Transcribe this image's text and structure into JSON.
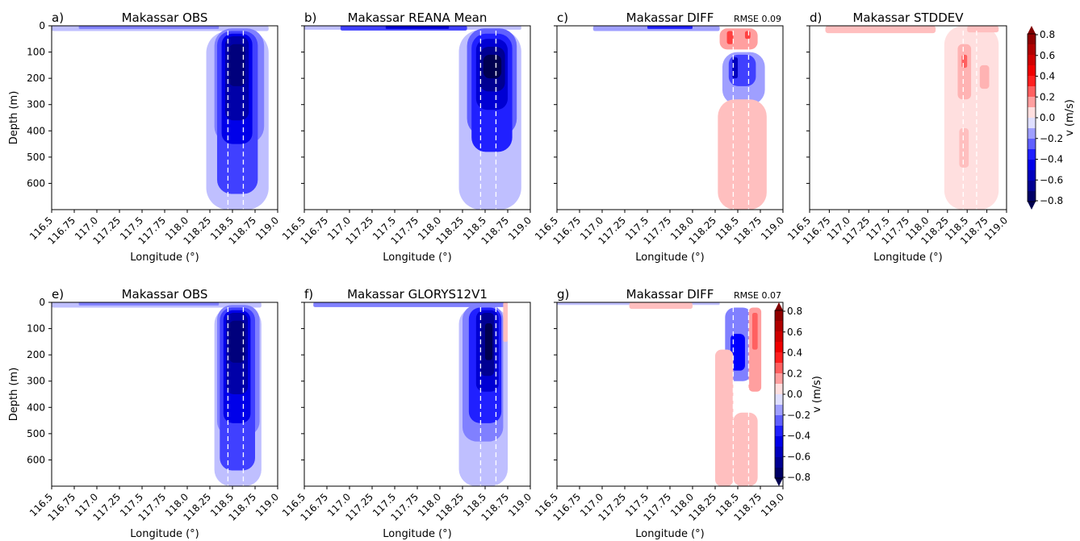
{
  "chart_data": [
    {
      "type": "heatmap",
      "label": "a)",
      "title": "Makassar OBS",
      "annotation": "",
      "xlabel": "Longitude (°)",
      "ylabel": "Depth (m)",
      "xlim": [
        116.5,
        119.0
      ],
      "ylim": [
        700,
        0
      ],
      "xticks": [
        "116.5",
        "116.75",
        "117.0",
        "117.25",
        "117.5",
        "117.75",
        "118.0",
        "118.25",
        "118.5",
        "118.75",
        "119.0"
      ],
      "yticks": [
        "0",
        "100",
        "200",
        "300",
        "400",
        "500",
        "600"
      ],
      "guide_lines_lon": [
        118.45,
        118.62
      ],
      "shading": [
        {
          "lon": [
            116.5,
            118.9
          ],
          "depth": [
            0,
            20
          ],
          "v": -0.1
        },
        {
          "lon": [
            118.21,
            118.9
          ],
          "depth": [
            20,
            700
          ],
          "v": -0.1
        },
        {
          "lon": [
            116.8,
            118.35
          ],
          "depth": [
            0,
            12
          ],
          "v": -0.2
        },
        {
          "lon": [
            118.3,
            118.85
          ],
          "depth": [
            10,
            450
          ],
          "v": -0.2
        },
        {
          "lon": [
            118.33,
            118.78
          ],
          "depth": [
            20,
            640
          ],
          "v": -0.3
        },
        {
          "lon": [
            118.38,
            118.72
          ],
          "depth": [
            30,
            450
          ],
          "v": -0.45
        },
        {
          "lon": [
            118.42,
            118.68
          ],
          "depth": [
            40,
            360
          ],
          "v": -0.6
        },
        {
          "lon": [
            118.46,
            118.64
          ],
          "depth": [
            70,
            230
          ],
          "v": -0.7
        }
      ]
    },
    {
      "type": "heatmap",
      "label": "b)",
      "title": "Makassar REANA Mean",
      "annotation": "",
      "xlabel": "Longitude (°)",
      "ylabel": "",
      "xlim": [
        116.5,
        119.0
      ],
      "ylim": [
        700,
        0
      ],
      "xticks": [
        "116.5",
        "116.75",
        "117.0",
        "117.25",
        "117.5",
        "117.75",
        "118.0",
        "118.25",
        "118.5",
        "118.75",
        "119.0"
      ],
      "yticks": [],
      "guide_lines_lon": [
        118.45,
        118.62
      ],
      "shading": [
        {
          "lon": [
            116.5,
            118.9
          ],
          "depth": [
            0,
            15
          ],
          "v": -0.1
        },
        {
          "lon": [
            118.21,
            118.9
          ],
          "depth": [
            15,
            700
          ],
          "v": -0.1
        },
        {
          "lon": [
            116.9,
            118.3
          ],
          "depth": [
            0,
            18
          ],
          "v": -0.3
        },
        {
          "lon": [
            117.4,
            118.1
          ],
          "depth": [
            0,
            12
          ],
          "v": -0.5
        },
        {
          "lon": [
            118.3,
            118.85
          ],
          "depth": [
            10,
            420
          ],
          "v": -0.25
        },
        {
          "lon": [
            118.35,
            118.8
          ],
          "depth": [
            30,
            480
          ],
          "v": -0.35
        },
        {
          "lon": [
            118.4,
            118.75
          ],
          "depth": [
            50,
            320
          ],
          "v": -0.5
        },
        {
          "lon": [
            118.44,
            118.72
          ],
          "depth": [
            80,
            250
          ],
          "v": -0.65
        },
        {
          "lon": [
            118.48,
            118.68
          ],
          "depth": [
            110,
            200
          ],
          "v": -0.8
        }
      ]
    },
    {
      "type": "heatmap",
      "label": "c)",
      "title": "Makassar DIFF",
      "annotation": "RMSE 0.09",
      "xlabel": "Longitude (°)",
      "ylabel": "",
      "xlim": [
        116.5,
        119.0
      ],
      "ylim": [
        700,
        0
      ],
      "xticks": [
        "116.5",
        "116.75",
        "117.0",
        "117.25",
        "117.5",
        "117.75",
        "118.0",
        "118.25",
        "118.5",
        "118.75",
        "119.0"
      ],
      "yticks": [],
      "guide_lines_lon": [
        118.45,
        118.62
      ],
      "shading": [
        {
          "lon": [
            116.9,
            118.3
          ],
          "depth": [
            0,
            20
          ],
          "v": -0.15
        },
        {
          "lon": [
            117.5,
            118.0
          ],
          "depth": [
            0,
            12
          ],
          "v": -0.35
        },
        {
          "lon": [
            118.3,
            118.72
          ],
          "depth": [
            10,
            90
          ],
          "v": 0.15
        },
        {
          "lon": [
            118.38,
            118.45
          ],
          "depth": [
            20,
            70
          ],
          "v": 0.3
        },
        {
          "lon": [
            118.58,
            118.64
          ],
          "depth": [
            20,
            50
          ],
          "v": 0.3
        },
        {
          "lon": [
            118.33,
            118.8
          ],
          "depth": [
            100,
            300
          ],
          "v": -0.15
        },
        {
          "lon": [
            118.4,
            118.7
          ],
          "depth": [
            110,
            230
          ],
          "v": -0.3
        },
        {
          "lon": [
            118.44,
            118.5
          ],
          "depth": [
            120,
            200
          ],
          "v": -0.55
        },
        {
          "lon": [
            118.28,
            118.82
          ],
          "depth": [
            280,
            700
          ],
          "v": 0.1
        }
      ]
    },
    {
      "type": "heatmap",
      "label": "d)",
      "title": "Makassar STDDEV",
      "annotation": "",
      "xlabel": "Longitude (°)",
      "ylabel": "",
      "xlim": [
        116.5,
        119.0
      ],
      "ylim": [
        700,
        0
      ],
      "xticks": [
        "116.5",
        "116.75",
        "117.0",
        "117.25",
        "117.5",
        "117.75",
        "118.0",
        "118.25",
        "118.5",
        "118.75",
        "119.0"
      ],
      "yticks": [],
      "guide_lines_lon": [
        118.45,
        118.62
      ],
      "shading": [
        {
          "lon": [
            118.21,
            118.9
          ],
          "depth": [
            0,
            700
          ],
          "v": 0.02
        },
        {
          "lon": [
            116.7,
            118.1
          ],
          "depth": [
            0,
            28
          ],
          "v": 0.1
        },
        {
          "lon": [
            118.5,
            118.9
          ],
          "depth": [
            0,
            25
          ],
          "v": 0.1
        },
        {
          "lon": [
            118.38,
            118.55
          ],
          "depth": [
            70,
            280
          ],
          "v": 0.12
        },
        {
          "lon": [
            118.43,
            118.5
          ],
          "depth": [
            110,
            160
          ],
          "v": 0.25
        },
        {
          "lon": [
            118.66,
            118.78
          ],
          "depth": [
            150,
            240
          ],
          "v": 0.12
        },
        {
          "lon": [
            118.4,
            118.52
          ],
          "depth": [
            390,
            540
          ],
          "v": 0.1
        }
      ]
    },
    {
      "type": "heatmap",
      "label": "e)",
      "title": "Makassar OBS",
      "annotation": "",
      "xlabel": "Longitude (°)",
      "ylabel": "Depth (m)",
      "xlim": [
        116.5,
        119.0
      ],
      "ylim": [
        700,
        0
      ],
      "xticks": [
        "116.5",
        "116.75",
        "117.0",
        "117.25",
        "117.5",
        "117.75",
        "118.0",
        "118.25",
        "118.5",
        "118.75",
        "119.0"
      ],
      "yticks": [
        "0",
        "100",
        "200",
        "300",
        "400",
        "500",
        "600"
      ],
      "guide_lines_lon": [
        118.45,
        118.62
      ],
      "shading": [
        {
          "lon": [
            116.5,
            118.82
          ],
          "depth": [
            0,
            20
          ],
          "v": -0.1
        },
        {
          "lon": [
            118.3,
            118.82
          ],
          "depth": [
            20,
            700
          ],
          "v": -0.1
        },
        {
          "lon": [
            116.8,
            118.35
          ],
          "depth": [
            0,
            12
          ],
          "v": -0.2
        },
        {
          "lon": [
            118.33,
            118.8
          ],
          "depth": [
            10,
            510
          ],
          "v": -0.2
        },
        {
          "lon": [
            118.36,
            118.75
          ],
          "depth": [
            20,
            640
          ],
          "v": -0.3
        },
        {
          "lon": [
            118.4,
            118.7
          ],
          "depth": [
            30,
            460
          ],
          "v": -0.45
        },
        {
          "lon": [
            118.43,
            118.67
          ],
          "depth": [
            40,
            350
          ],
          "v": -0.6
        },
        {
          "lon": [
            118.46,
            118.64
          ],
          "depth": [
            70,
            230
          ],
          "v": -0.7
        }
      ]
    },
    {
      "type": "heatmap",
      "label": "f)",
      "title": "Makassar GLORYS12V1",
      "annotation": "",
      "xlabel": "Longitude (°)",
      "ylabel": "",
      "xlim": [
        116.5,
        119.0
      ],
      "ylim": [
        700,
        0
      ],
      "xticks": [
        "116.5",
        "116.75",
        "117.0",
        "117.25",
        "117.5",
        "117.75",
        "118.0",
        "118.25",
        "118.5",
        "118.75",
        "119.0"
      ],
      "yticks": [],
      "guide_lines_lon": [
        118.45,
        118.62
      ],
      "shading": [
        {
          "lon": [
            116.6,
            118.75
          ],
          "depth": [
            0,
            18
          ],
          "v": -0.2
        },
        {
          "lon": [
            118.21,
            118.75
          ],
          "depth": [
            18,
            700
          ],
          "v": -0.1
        },
        {
          "lon": [
            118.25,
            118.7
          ],
          "depth": [
            10,
            530
          ],
          "v": -0.2
        },
        {
          "lon": [
            118.32,
            118.68
          ],
          "depth": [
            20,
            460
          ],
          "v": -0.35
        },
        {
          "lon": [
            118.4,
            118.65
          ],
          "depth": [
            30,
            340
          ],
          "v": -0.5
        },
        {
          "lon": [
            118.45,
            118.6
          ],
          "depth": [
            40,
            280
          ],
          "v": -0.65
        },
        {
          "lon": [
            118.5,
            118.58
          ],
          "depth": [
            80,
            220
          ],
          "v": -0.8
        },
        {
          "lon": [
            118.7,
            118.75
          ],
          "depth": [
            0,
            150
          ],
          "v": 0.1
        }
      ]
    },
    {
      "type": "heatmap",
      "label": "g)",
      "title": "Makassar DIFF",
      "annotation": "RMSE 0.07",
      "xlabel": "Longitude (°)",
      "ylabel": "",
      "xlim": [
        116.5,
        119.0
      ],
      "ylim": [
        700,
        0
      ],
      "xticks": [
        "116.5",
        "116.75",
        "117.0",
        "117.25",
        "117.5",
        "117.75",
        "118.0",
        "118.25",
        "118.5",
        "118.75",
        "119.0"
      ],
      "yticks": [],
      "guide_lines_lon": [
        118.45,
        118.62
      ],
      "shading": [
        {
          "lon": [
            116.5,
            118.3
          ],
          "depth": [
            0,
            10
          ],
          "v": -0.1
        },
        {
          "lon": [
            117.3,
            118.0
          ],
          "depth": [
            0,
            25
          ],
          "v": 0.1
        },
        {
          "lon": [
            118.36,
            118.66
          ],
          "depth": [
            20,
            300
          ],
          "v": -0.2
        },
        {
          "lon": [
            118.42,
            118.58
          ],
          "depth": [
            120,
            260
          ],
          "v": -0.4
        },
        {
          "lon": [
            118.62,
            118.76
          ],
          "depth": [
            20,
            340
          ],
          "v": 0.15
        },
        {
          "lon": [
            118.66,
            118.72
          ],
          "depth": [
            40,
            180
          ],
          "v": 0.25
        },
        {
          "lon": [
            118.25,
            118.45
          ],
          "depth": [
            180,
            700
          ],
          "v": 0.1
        },
        {
          "lon": [
            118.45,
            118.72
          ],
          "depth": [
            420,
            700
          ],
          "v": 0.1
        }
      ]
    }
  ],
  "colorbar": {
    "label": "v (m/s)",
    "ticks": [
      "0.8",
      "0.6",
      "0.4",
      "0.2",
      "0.0",
      "−0.2",
      "−0.4",
      "−0.6",
      "−0.8"
    ],
    "range": [
      -0.8,
      0.8
    ],
    "cmap": "seismic"
  },
  "colors": {
    "guide_line": "#ffffff",
    "axes": "#000000"
  }
}
